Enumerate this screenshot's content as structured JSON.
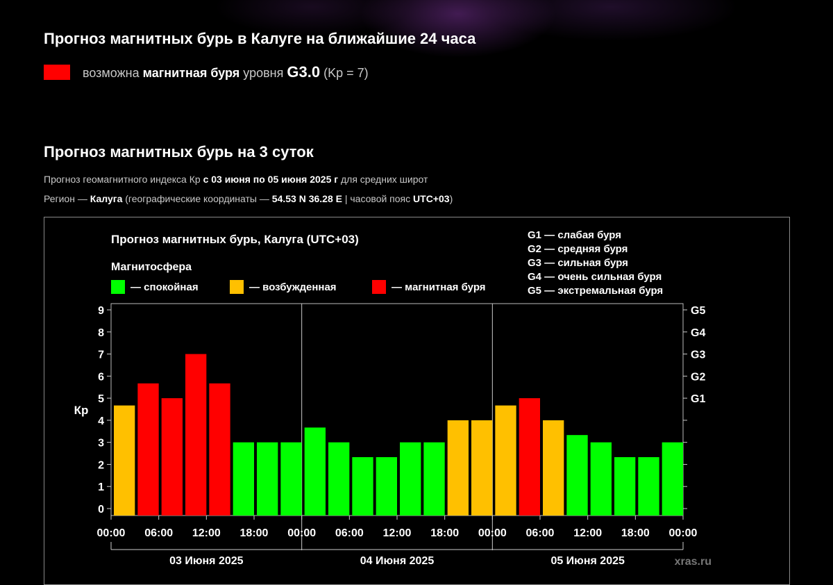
{
  "header": {
    "title": "Прогноз магнитных бурь в Калуге на ближайшие 24 часа",
    "storm_prefix": "возможна",
    "storm_bold": "магнитная буря",
    "storm_mid": "уровня",
    "storm_level": "G3.0",
    "storm_kp": "(Kp = 7)",
    "storm_color": "#ff0000"
  },
  "section": {
    "title": "Прогноз магнитных бурь на 3 суток",
    "line1_pre": "Прогноз геомагнитного индекса Кр ",
    "line1_bold": "с 03 июня по 05 июня 2025 г",
    "line1_post": " для средних широт",
    "line2_pre": "Регион — ",
    "line2_region": "Калуга",
    "line2_mid": " (географические координаты — ",
    "line2_coords": "54.53 N 36.28 E",
    "line2_tz_pre": " | часовой пояс ",
    "line2_tz": "UTC+03",
    "line2_post": ")"
  },
  "chart_data": {
    "type": "bar",
    "title": "Прогноз магнитных бурь, Калуга (UTC+03)",
    "legend_title": "Магнитосфера",
    "legend": [
      {
        "label": "— спокойная",
        "color": "#00ff00"
      },
      {
        "label": "— возбужденная",
        "color": "#ffc000"
      },
      {
        "label": "— магнитная буря",
        "color": "#ff0000"
      }
    ],
    "g_legend": [
      "G1 — слабая буря",
      "G2 — средняя буря",
      "G3 — сильная буря",
      "G4 — очень сильная буря",
      "G5 — экстремальная буря"
    ],
    "ylabel": "Кр",
    "ylim": [
      0,
      9
    ],
    "yticks": [
      "0",
      "1",
      "2",
      "3",
      "4",
      "5",
      "6",
      "7",
      "8",
      "9"
    ],
    "g_levels": [
      {
        "label": "G1",
        "kp": 5
      },
      {
        "label": "G2",
        "kp": 6
      },
      {
        "label": "G3",
        "kp": 7
      },
      {
        "label": "G4",
        "kp": 8
      },
      {
        "label": "G5",
        "kp": 9
      }
    ],
    "xticks": [
      "00:00",
      "06:00",
      "12:00",
      "18:00",
      "00:00",
      "06:00",
      "12:00",
      "18:00",
      "00:00",
      "06:00",
      "12:00",
      "18:00",
      "00:00"
    ],
    "days": [
      "03 Июня 2025",
      "04 Июня 2025",
      "05 Июня 2025"
    ],
    "values": [
      4.67,
      5.67,
      5.0,
      7.0,
      5.67,
      3.0,
      3.0,
      3.0,
      3.67,
      3.0,
      2.33,
      2.33,
      3.0,
      3.0,
      4.0,
      4.0,
      4.67,
      5.0,
      4.0,
      3.33,
      3.0,
      2.33,
      2.33,
      3.0
    ],
    "colors": [
      "#ffc000",
      "#ff0000",
      "#ff0000",
      "#ff0000",
      "#ff0000",
      "#00ff00",
      "#00ff00",
      "#00ff00",
      "#00ff00",
      "#00ff00",
      "#00ff00",
      "#00ff00",
      "#00ff00",
      "#00ff00",
      "#ffc000",
      "#ffc000",
      "#ffc000",
      "#ff0000",
      "#ffc000",
      "#00ff00",
      "#00ff00",
      "#00ff00",
      "#00ff00",
      "#00ff00"
    ],
    "watermark": "xras.ru"
  }
}
